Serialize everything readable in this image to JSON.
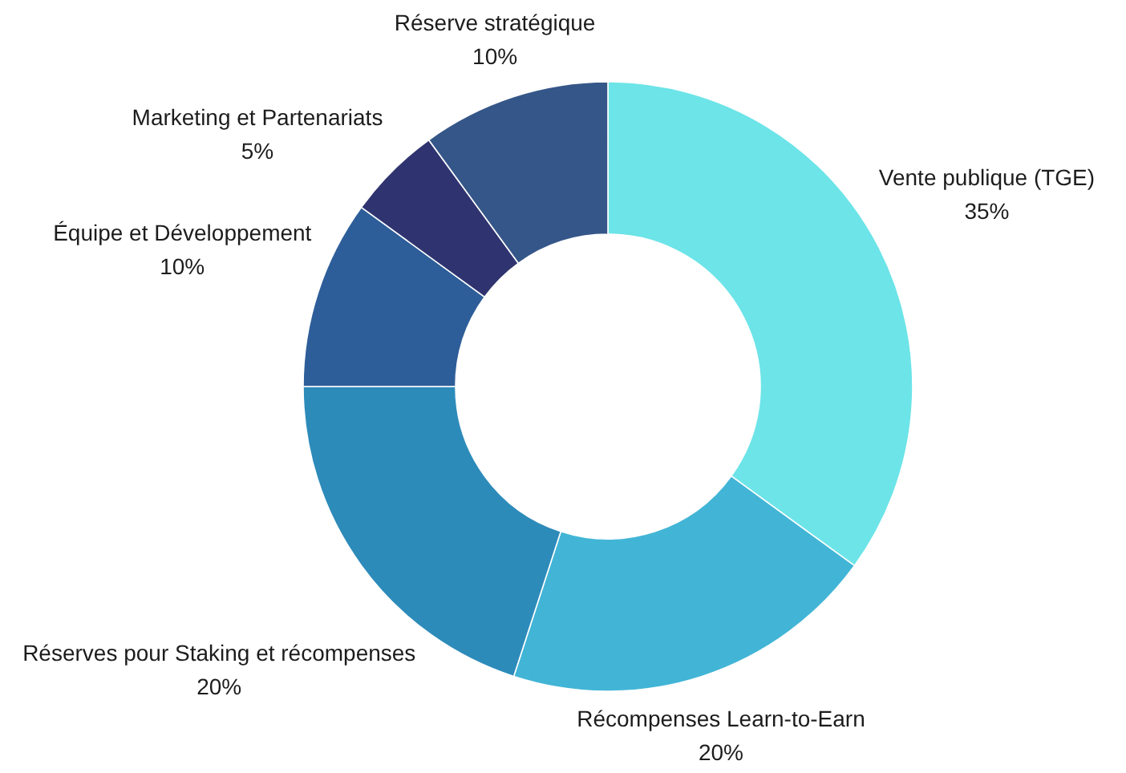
{
  "chart_data": {
    "type": "donut",
    "categories": [
      "Vente publique (TGE)",
      "Récompenses Learn-to-Earn",
      "Réserves pour Staking et récompenses",
      "Équipe et Développement",
      "Marketing et Partenariats",
      "Réserve stratégique"
    ],
    "values": [
      35,
      20,
      20,
      10,
      5,
      10
    ],
    "colors": [
      "#6ce4e8",
      "#42b5d6",
      "#2d8bba",
      "#2e5e99",
      "#2f3470",
      "#355688"
    ],
    "value_labels": [
      "35%",
      "20%",
      "20%",
      "10%",
      "5%",
      "10%"
    ]
  }
}
